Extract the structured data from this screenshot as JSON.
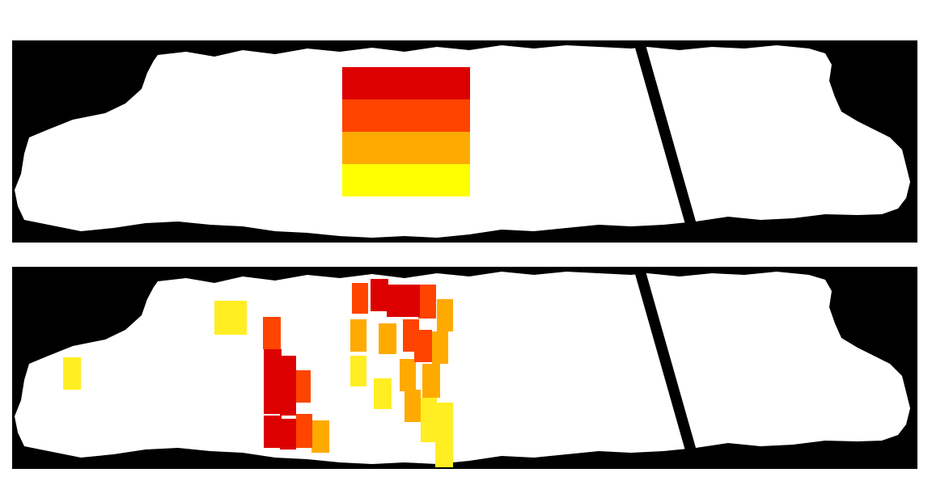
{
  "colors": {
    "background": "#000000",
    "region": "#ffffff",
    "red": "#dd0000",
    "red_orange": "#ff4400",
    "orange": "#ffaa00",
    "yellow": "#ffff00",
    "yellow_pale": "#ffee22"
  },
  "panels": [
    {
      "name": "reference-panel",
      "pattern": "striped-square"
    },
    {
      "name": "scattered-panel",
      "pattern": "scattered-fragments"
    }
  ]
}
